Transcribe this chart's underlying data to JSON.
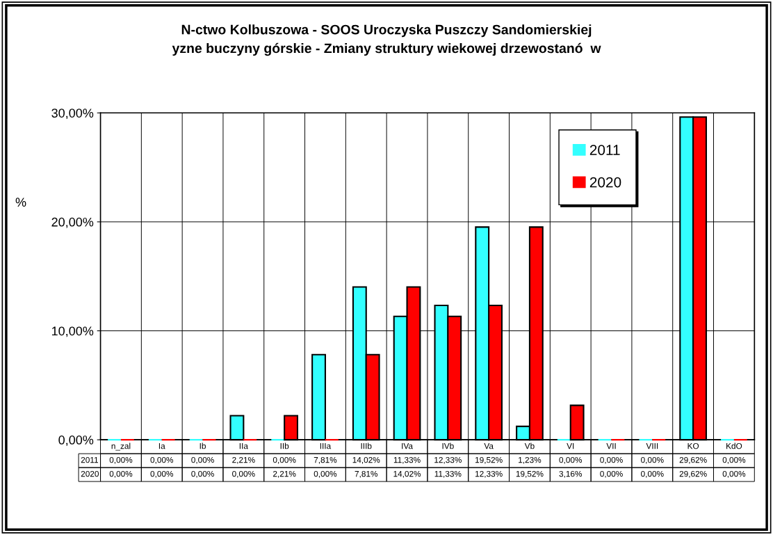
{
  "chart_data": {
    "type": "bar",
    "title": "N-ctwo Kolbuszowa - SOOS Uroczyska Puszczy Sandomierskiej\nyzne buczyny górskie - Zmiany struktury wiekowej drzewostanó  w",
    "ylabel": "%",
    "categories": [
      "n_zal",
      "Ia",
      "Ib",
      "IIa",
      "IIb",
      "IIIa",
      "IIIb",
      "IVa",
      "IVb",
      "Va",
      "Vb",
      "VI",
      "VII",
      "VIII",
      "KO",
      "KdO"
    ],
    "series": [
      {
        "name": "2011",
        "color": "#33ffff",
        "values": [
          0,
          0,
          0,
          2.21,
          0,
          7.81,
          14.02,
          11.33,
          12.33,
          19.52,
          1.23,
          0,
          0,
          0,
          29.62,
          0
        ],
        "value_labels": [
          "0,00%",
          "0,00%",
          "0,00%",
          "2,21%",
          "0,00%",
          "7,81%",
          "14,02%",
          "11,33%",
          "12,33%",
          "19,52%",
          "1,23%",
          "0,00%",
          "0,00%",
          "0,00%",
          "29,62%",
          "0,00%"
        ]
      },
      {
        "name": "2020",
        "color": "#ff0000",
        "values": [
          0,
          0,
          0,
          0,
          2.21,
          0,
          7.81,
          14.02,
          11.33,
          12.33,
          19.52,
          3.16,
          0,
          0,
          29.62,
          0
        ],
        "value_labels": [
          "0,00%",
          "0,00%",
          "0,00%",
          "0,00%",
          "2,21%",
          "0,00%",
          "7,81%",
          "14,02%",
          "11,33%",
          "12,33%",
          "19,52%",
          "3,16%",
          "0,00%",
          "0,00%",
          "29,62%",
          "0,00%"
        ]
      }
    ],
    "ylim": [
      0,
      30
    ],
    "yticks": [
      {
        "value": 0,
        "label": "0,00%"
      },
      {
        "value": 10,
        "label": "10,00%"
      },
      {
        "value": 20,
        "label": "20,00%"
      },
      {
        "value": 30,
        "label": "30,00%"
      }
    ],
    "grid": true,
    "legend": "top right"
  }
}
